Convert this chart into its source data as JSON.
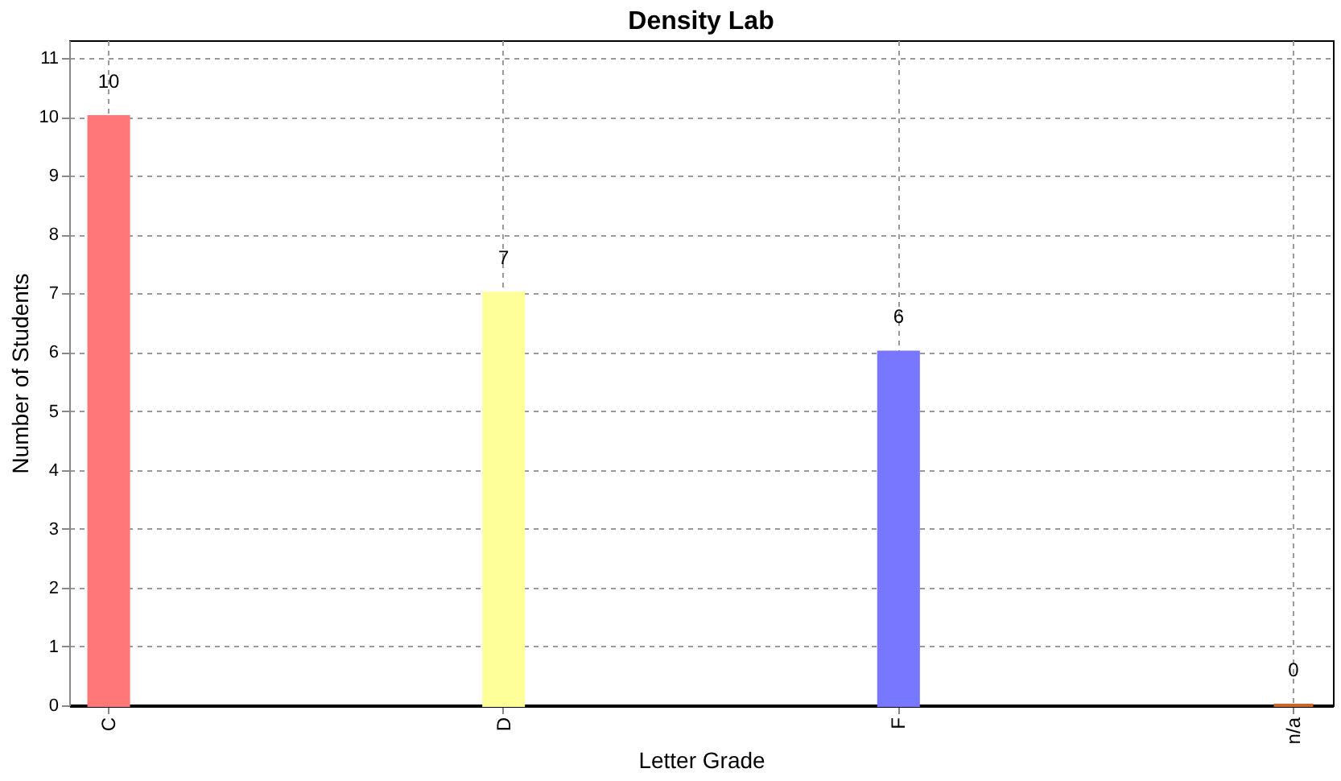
{
  "chart_data": {
    "type": "bar",
    "title": "Density Lab",
    "xlabel": "Letter Grade",
    "ylabel": "Number of Students",
    "categories": [
      "C",
      "D",
      "F",
      "n/a"
    ],
    "values": [
      10,
      7,
      6,
      0
    ],
    "colors": [
      "#ff7777",
      "#ffff99",
      "#7777ff",
      "#cc6622"
    ],
    "ylim": [
      0,
      11.3
    ],
    "yticks": [
      0,
      1,
      2,
      3,
      4,
      5,
      6,
      7,
      8,
      9,
      10,
      11
    ],
    "grid": true,
    "data_labels": true
  }
}
